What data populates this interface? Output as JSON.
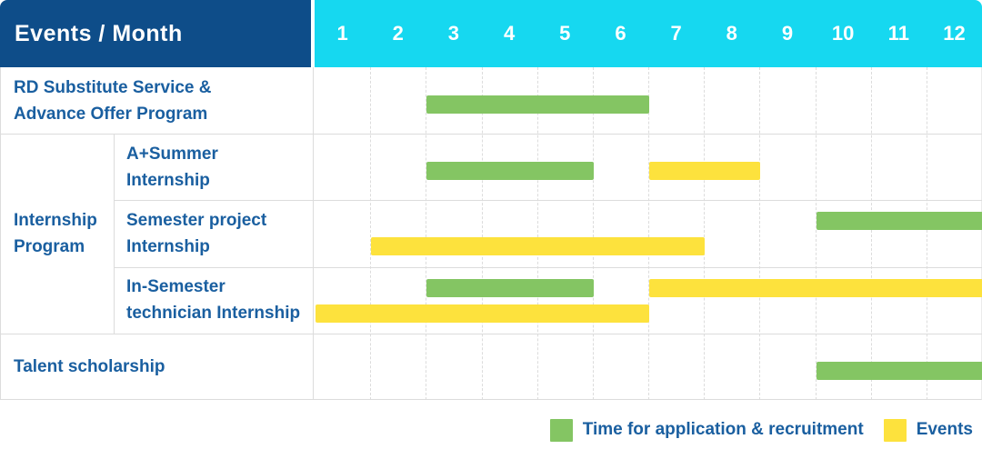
{
  "colors": {
    "header_navy": "#0e4d89",
    "month_cyan": "#16d8f0",
    "bar_green": "#84c563",
    "bar_yellow": "#fde23d",
    "label_blue": "#1a5fa0",
    "grid": "#dcdcdc"
  },
  "header": {
    "label_col": "Events / Month"
  },
  "chart_data": {
    "type": "gantt-table",
    "title": "Events / Month",
    "months": [
      "1",
      "2",
      "3",
      "4",
      "5",
      "6",
      "7",
      "8",
      "9",
      "10",
      "11",
      "12"
    ],
    "x_range": [
      1,
      12
    ],
    "group": {
      "label": "Internship Program",
      "label_lines": [
        "Internship",
        "Program"
      ],
      "row_start": 1,
      "row_end": 3
    },
    "rows": [
      {
        "label": "RD Substitute Service & Advance Offer Program",
        "label_lines": [
          "RD Substitute Service &",
          "Advance Offer Program"
        ],
        "indent": false,
        "bars": [
          {
            "series": "application",
            "start_month": 3,
            "end_month": 6,
            "lane": "single"
          }
        ]
      },
      {
        "label": "A+Summer Internship",
        "label_lines": [
          "A+Summer",
          "Internship"
        ],
        "indent": true,
        "bars": [
          {
            "series": "application",
            "start_month": 3,
            "end_month": 5,
            "lane": "single"
          },
          {
            "series": "events",
            "start_month": 7,
            "end_month": 8,
            "lane": "single"
          }
        ]
      },
      {
        "label": "Semester project Internship",
        "label_lines": [
          "Semester project",
          "Internship"
        ],
        "indent": true,
        "bars": [
          {
            "series": "application",
            "start_month": 10,
            "end_month": 12,
            "lane": "upper"
          },
          {
            "series": "events",
            "start_month": 2,
            "end_month": 7,
            "lane": "lower"
          }
        ]
      },
      {
        "label": "In-Semester technician Internship",
        "label_lines": [
          "In-Semester",
          "technician Internship"
        ],
        "indent": true,
        "bars": [
          {
            "series": "application",
            "start_month": 3,
            "end_month": 5,
            "lane": "upper"
          },
          {
            "series": "events",
            "start_month": 7,
            "end_month": 12,
            "lane": "upper"
          },
          {
            "series": "events",
            "start_month": 1,
            "end_month": 6,
            "lane": "lower"
          }
        ]
      },
      {
        "label": "Talent scholarship",
        "label_lines": [
          "Talent scholarship"
        ],
        "indent": false,
        "bars": [
          {
            "series": "application",
            "start_month": 10,
            "end_month": 12,
            "lane": "single"
          }
        ]
      }
    ],
    "legend": [
      {
        "label": "Time for application & recruitment",
        "series": "application",
        "color": "#84c563"
      },
      {
        "label": "Events",
        "series": "events",
        "color": "#fde23d"
      }
    ],
    "legend_position": "bottom-right",
    "grid": "dashed-vertical-month-lines"
  }
}
